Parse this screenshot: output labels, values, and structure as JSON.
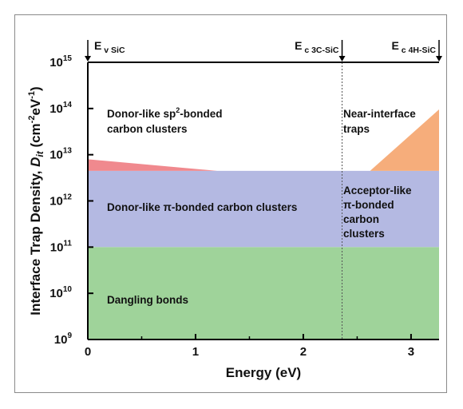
{
  "chart_data": {
    "type": "area",
    "xlabel": "Energy (eV)",
    "ylabel": "Interface Trap Density, Dit (cm-2eV-1)",
    "ylabel_parts": {
      "main": "Interface Trap Density, ",
      "var": "D",
      "sub": "it",
      "unit_open": " (cm",
      "exp1": "-2",
      "mid": "eV",
      "exp2": "-1",
      "unit_close": ")"
    },
    "xlim": [
      0,
      3.26
    ],
    "ylim_log10": [
      9,
      15
    ],
    "y_scale": "log",
    "x_ticks": [
      {
        "value": 0,
        "label": "0"
      },
      {
        "value": 1,
        "label": "1"
      },
      {
        "value": 2,
        "label": "2"
      },
      {
        "value": 3,
        "label": "3"
      }
    ],
    "y_ticks": [
      {
        "exp": 9,
        "base": "10",
        "sup": "9"
      },
      {
        "exp": 10,
        "base": "10",
        "sup": "10"
      },
      {
        "exp": 11,
        "base": "10",
        "sup": "11"
      },
      {
        "exp": 12,
        "base": "10",
        "sup": "12"
      },
      {
        "exp": 13,
        "base": "10",
        "sup": "13"
      },
      {
        "exp": 14,
        "base": "10",
        "sup": "14"
      },
      {
        "exp": 15,
        "base": "10",
        "sup": "15"
      }
    ],
    "regions": [
      {
        "name": "Dangling bonds",
        "color": "#9fd39a",
        "polygon": [
          [
            0,
            9
          ],
          [
            3.26,
            9
          ],
          [
            3.26,
            11
          ],
          [
            0,
            11
          ]
        ]
      },
      {
        "name": "Donor-like π-bonded carbon clusters / Acceptor-like π-bonded carbon clusters",
        "color": "#b4b9e2",
        "polygon": [
          [
            0,
            11
          ],
          [
            3.26,
            11
          ],
          [
            3.26,
            12.65
          ],
          [
            0,
            12.65
          ]
        ]
      },
      {
        "name": "Donor-like sp2-bonded carbon clusters",
        "color": "#f0898e",
        "polygon": [
          [
            0,
            12.65
          ],
          [
            1.2,
            12.65
          ],
          [
            0,
            12.9
          ]
        ]
      },
      {
        "name": "Near-interface traps",
        "color": "#f6ad7b",
        "polygon": [
          [
            2.62,
            12.65
          ],
          [
            3.26,
            12.65
          ],
          [
            3.26,
            13.98
          ]
        ]
      }
    ],
    "markers": [
      {
        "id": "ev-sic",
        "x": 0,
        "base": "E",
        "sub": "v SiC"
      },
      {
        "id": "ec-3c",
        "x": 2.36,
        "base": "E",
        "sub": "c 3C-SiC"
      },
      {
        "id": "ec-4h",
        "x": 3.26,
        "base": "E",
        "sub": "c 4H-SiC"
      }
    ],
    "region_labels": {
      "sp2_line1": "Donor-like sp",
      "sp2_sup": "2",
      "sp2_line1_end": "-bonded",
      "sp2_line2": "carbon clusters",
      "nit_line1": "Near-interface",
      "nit_line2": "traps",
      "pi_donor": "Donor-like π-bonded carbon clusters",
      "pi_acc_1": "Acceptor-like",
      "pi_acc_2": "π-bonded",
      "pi_acc_3": "carbon",
      "pi_acc_4": "clusters",
      "dangling": "Dangling bonds"
    },
    "grid": false
  }
}
